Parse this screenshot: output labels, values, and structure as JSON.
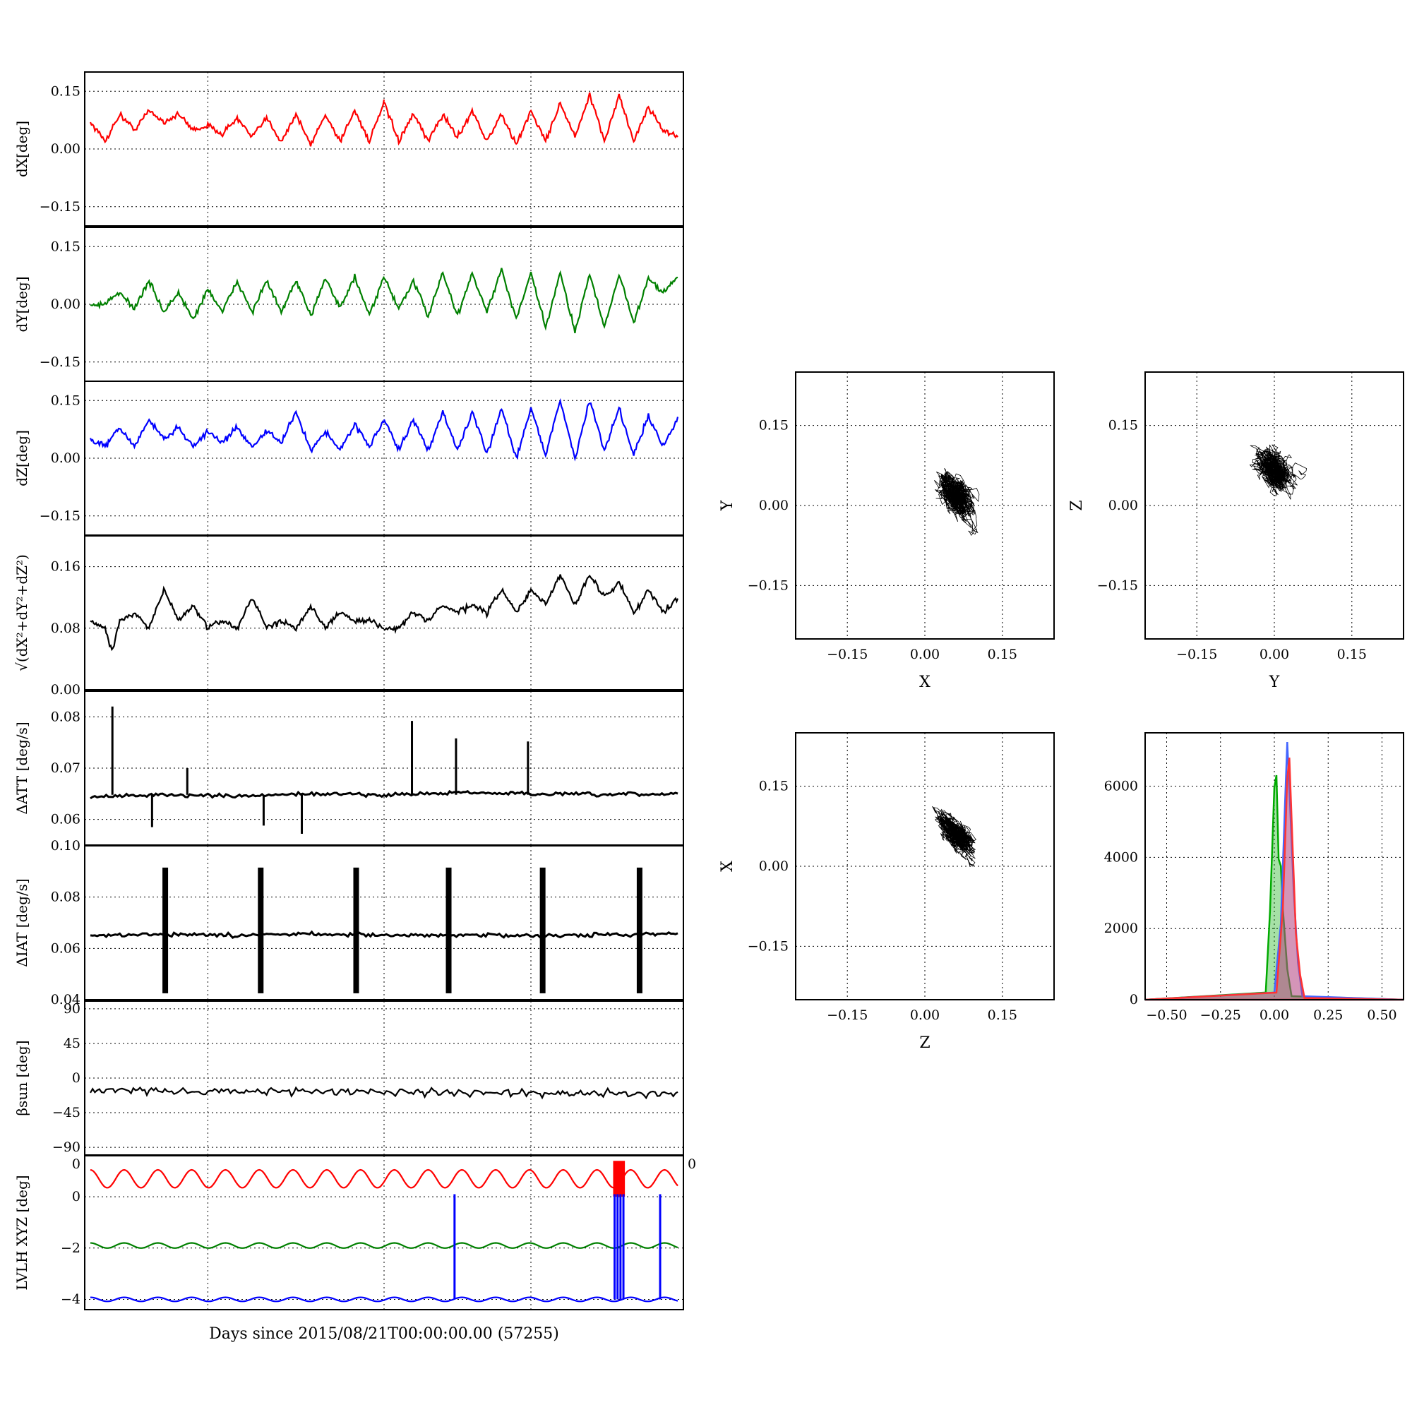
{
  "chart_data": [
    {
      "type": "line",
      "ylabel": "dX[deg]",
      "ylim": [
        -0.2,
        0.2
      ],
      "yticks": [
        "0.15",
        "0.00",
        "−0.15"
      ],
      "yticks_values": [
        0.15,
        0.0,
        -0.15
      ],
      "series": [
        {
          "color": "#ff0000",
          "x": [
            0,
            1,
            2,
            3,
            4,
            5,
            6,
            7,
            8,
            9,
            10,
            11,
            12,
            13,
            14,
            15,
            16,
            17,
            18,
            19,
            20
          ],
          "y": [
            0.07,
            0.02,
            0.09,
            0.05,
            0.1,
            0.07,
            0.09,
            0.05,
            0.06,
            0.04,
            0.08,
            0.03,
            0.08,
            0.02,
            0.09,
            0.01,
            0.09,
            0.02,
            0.1,
            0.02,
            0.12
          ]
        },
        {
          "color": "#ff0000",
          "x": [
            20,
            21,
            22,
            23,
            24,
            25,
            26,
            27,
            28,
            29,
            30,
            31,
            32,
            33,
            34,
            35,
            36,
            37,
            38,
            39,
            40
          ],
          "y": [
            0.12,
            0.02,
            0.09,
            0.02,
            0.09,
            0.03,
            0.1,
            0.02,
            0.09,
            0.01,
            0.1,
            0.02,
            0.12,
            0.03,
            0.14,
            0.02,
            0.14,
            0.02,
            0.11,
            0.05,
            0.03
          ]
        }
      ]
    },
    {
      "type": "line",
      "ylabel": "dY[deg]",
      "ylim": [
        -0.2,
        0.2
      ],
      "yticks": [
        "0.15",
        "0.00",
        "−0.15"
      ],
      "yticks_values": [
        0.15,
        0.0,
        -0.15
      ],
      "series": [
        {
          "color": "#008000",
          "x": [
            0,
            1,
            2,
            3,
            4,
            5,
            6,
            7,
            8,
            9,
            10,
            11,
            12,
            13,
            14,
            15,
            16,
            17,
            18,
            19,
            20
          ],
          "y": [
            0.0,
            0.0,
            0.03,
            -0.01,
            0.06,
            -0.02,
            0.03,
            -0.04,
            0.04,
            -0.02,
            0.06,
            -0.02,
            0.06,
            -0.02,
            0.06,
            -0.03,
            0.07,
            -0.01,
            0.07,
            -0.03,
            0.07
          ]
        },
        {
          "color": "#008000",
          "x": [
            20,
            21,
            22,
            23,
            24,
            25,
            26,
            27,
            28,
            29,
            30,
            31,
            32,
            33,
            34,
            35,
            36,
            37,
            38,
            39,
            40
          ],
          "y": [
            0.07,
            -0.01,
            0.06,
            -0.03,
            0.08,
            -0.03,
            0.08,
            -0.02,
            0.09,
            -0.04,
            0.08,
            -0.06,
            0.08,
            -0.07,
            0.08,
            -0.06,
            0.08,
            -0.05,
            0.07,
            0.03,
            0.07
          ]
        }
      ]
    },
    {
      "type": "line",
      "ylabel": "dZ[deg]",
      "ylim": [
        -0.2,
        0.2
      ],
      "yticks": [
        "0.15",
        "0.00",
        "−0.15"
      ],
      "yticks_values": [
        0.15,
        0.0,
        -0.15
      ],
      "series": [
        {
          "color": "#0000ff",
          "x": [
            0,
            1,
            2,
            3,
            4,
            5,
            6,
            7,
            8,
            9,
            10,
            11,
            12,
            13,
            14,
            15,
            16,
            17,
            18,
            19,
            20
          ],
          "y": [
            0.05,
            0.03,
            0.08,
            0.03,
            0.1,
            0.05,
            0.08,
            0.03,
            0.07,
            0.04,
            0.08,
            0.03,
            0.07,
            0.04,
            0.12,
            0.02,
            0.07,
            0.02,
            0.09,
            0.03,
            0.1
          ]
        },
        {
          "color": "#0000ff",
          "x": [
            20,
            21,
            22,
            23,
            24,
            25,
            26,
            27,
            28,
            29,
            30,
            31,
            32,
            33,
            34,
            35,
            36,
            37,
            38,
            39,
            40
          ],
          "y": [
            0.1,
            0.02,
            0.1,
            0.02,
            0.12,
            0.02,
            0.12,
            0.01,
            0.13,
            0.0,
            0.13,
            0.01,
            0.15,
            0.0,
            0.15,
            0.02,
            0.13,
            0.01,
            0.11,
            0.03,
            0.1
          ]
        }
      ]
    },
    {
      "type": "line",
      "ylabel": "√(dX²+dY²+dZ²)",
      "ylim": [
        0.0,
        0.2
      ],
      "yticks": [
        "0.16",
        "0.08",
        "0.00"
      ],
      "yticks_values": [
        0.16,
        0.08,
        0.0
      ],
      "series": [
        {
          "color": "#000000",
          "x": [
            0,
            1,
            1.5,
            2,
            3,
            4,
            5,
            6,
            7,
            8,
            9,
            10,
            11,
            12,
            13,
            14,
            15,
            16,
            17,
            18,
            19,
            20
          ],
          "y": [
            0.09,
            0.08,
            0.05,
            0.09,
            0.1,
            0.08,
            0.13,
            0.09,
            0.11,
            0.08,
            0.09,
            0.08,
            0.12,
            0.08,
            0.09,
            0.08,
            0.11,
            0.08,
            0.1,
            0.09,
            0.09,
            0.08
          ]
        },
        {
          "color": "#000000",
          "x": [
            20,
            21,
            22,
            23,
            24,
            25,
            26,
            27,
            28,
            29,
            30,
            31,
            32,
            33,
            34,
            35,
            36,
            37,
            38,
            39,
            40
          ],
          "y": [
            0.08,
            0.08,
            0.1,
            0.09,
            0.11,
            0.1,
            0.11,
            0.1,
            0.13,
            0.1,
            0.13,
            0.11,
            0.15,
            0.11,
            0.15,
            0.12,
            0.14,
            0.1,
            0.13,
            0.1,
            0.12
          ]
        }
      ]
    },
    {
      "type": "line",
      "ylabel": "ΔATT [deg/s]",
      "ylim": [
        0.055,
        0.085
      ],
      "yticks": [
        "0.08",
        "0.07",
        "0.06"
      ],
      "yticks_values": [
        0.08,
        0.07,
        0.06
      ],
      "series": [
        {
          "color": "#000000",
          "x": [
            0,
            5,
            10,
            15,
            20,
            25,
            30,
            35,
            40
          ],
          "y": [
            0.0645,
            0.0648,
            0.0645,
            0.065,
            0.0648,
            0.0652,
            0.065,
            0.0648,
            0.065
          ]
        }
      ],
      "spikes": [
        {
          "x": 1.5,
          "y": 0.082
        },
        {
          "x": 4.2,
          "y": 0.0585
        },
        {
          "x": 6.6,
          "y": 0.07
        },
        {
          "x": 11.8,
          "y": 0.0588
        },
        {
          "x": 14.4,
          "y": 0.0572
        },
        {
          "x": 21.9,
          "y": 0.0792
        },
        {
          "x": 24.9,
          "y": 0.0758
        },
        {
          "x": 29.8,
          "y": 0.0752
        }
      ]
    },
    {
      "type": "line",
      "ylabel": "ΔIAT [deg/s]",
      "ylim": [
        0.04,
        0.1
      ],
      "yticks": [
        "0.10",
        "0.08",
        "0.06",
        "0.04"
      ],
      "yticks_values": [
        0.1,
        0.08,
        0.06,
        0.04
      ],
      "series": [
        {
          "color": "#000000",
          "x": [
            0,
            5,
            10,
            15,
            20,
            25,
            30,
            35,
            40
          ],
          "y": [
            0.065,
            0.0655,
            0.065,
            0.0658,
            0.065,
            0.0652,
            0.065,
            0.0652,
            0.066
          ]
        }
      ],
      "bursts": [
        {
          "x": 5.1,
          "ymin": 0.0425,
          "ymax": 0.0915
        },
        {
          "x": 11.6,
          "ymin": 0.0425,
          "ymax": 0.0915
        },
        {
          "x": 18.1,
          "ymin": 0.0425,
          "ymax": 0.0915
        },
        {
          "x": 24.4,
          "ymin": 0.0425,
          "ymax": 0.0915
        },
        {
          "x": 30.8,
          "ymin": 0.0425,
          "ymax": 0.0915
        },
        {
          "x": 37.4,
          "ymin": 0.0425,
          "ymax": 0.0915
        }
      ]
    },
    {
      "type": "line",
      "ylabel": "βsun [deg]",
      "ylim": [
        -100,
        100
      ],
      "yticks": [
        "90",
        "45",
        "0",
        "−45",
        "−90"
      ],
      "yticks_values": [
        90,
        45,
        0,
        -45,
        -90
      ],
      "series": [
        {
          "color": "#000000",
          "x": [
            0,
            10,
            20,
            30,
            40
          ],
          "y": [
            -16,
            -17,
            -18,
            -19,
            -21
          ]
        }
      ],
      "oscillation": {
        "period_days": 1.0,
        "amplitude_deg": 2
      }
    },
    {
      "type": "line",
      "ylabel": "LVLH XYZ [deg]",
      "ylim": [
        -4.4,
        1.6
      ],
      "yticks": [
        "0",
        "−2",
        "−4"
      ],
      "yticks_values": [
        0,
        -2,
        -4
      ],
      "corner_labels": [
        "0",
        "0"
      ],
      "series": [
        {
          "color": "#ff0000",
          "center": 0.7,
          "amplitude": 0.35,
          "period_days": 2.3
        },
        {
          "color": "#008000",
          "center": -1.9,
          "amplitude": 0.1,
          "period_days": 2.3
        },
        {
          "color": "#0000ff",
          "center": -4.0,
          "amplitude": 0.08,
          "period_days": 2.3
        }
      ],
      "jumps": [
        {
          "x": 24.8,
          "color": "#0000ff"
        },
        {
          "x": 35.7,
          "color": "#0000ff"
        },
        {
          "x": 35.9,
          "color": "#0000ff"
        },
        {
          "x": 36.1,
          "color": "#0000ff"
        },
        {
          "x": 36.3,
          "color": "#0000ff"
        },
        {
          "x": 38.8,
          "color": "#0000ff"
        }
      ],
      "red_band": {
        "x0": 35.6,
        "x1": 36.4
      }
    },
    {
      "type": "scatter",
      "xlabel": "X",
      "ylabel": "Y",
      "xlim": [
        -0.25,
        0.25
      ],
      "ylim": [
        -0.25,
        0.25
      ],
      "ticks": [
        "−0.15",
        "0.00",
        "0.15"
      ],
      "ticks_values": [
        -0.15,
        0.0,
        0.15
      ],
      "cloud": {
        "center_x": 0.06,
        "center_y": 0.02,
        "spread_x": 0.025,
        "spread_y": 0.03,
        "tilt": -0.6
      }
    },
    {
      "type": "scatter",
      "xlabel": "Y",
      "ylabel": "Z",
      "xlim": [
        -0.25,
        0.25
      ],
      "ylim": [
        -0.25,
        0.25
      ],
      "ticks": [
        "−0.15",
        "0.00",
        "0.15"
      ],
      "ticks_values": [
        -0.15,
        0.0,
        0.15
      ],
      "cloud": {
        "center_x": 0.0,
        "center_y": 0.07,
        "spread_x": 0.03,
        "spread_y": 0.028,
        "tilt": -0.4
      }
    },
    {
      "type": "scatter",
      "xlabel": "Z",
      "ylabel": "X",
      "xlim": [
        -0.25,
        0.25
      ],
      "ylim": [
        -0.25,
        0.25
      ],
      "ticks": [
        "−0.15",
        "0.00",
        "0.15"
      ],
      "ticks_values": [
        -0.15,
        0.0,
        0.15
      ],
      "cloud": {
        "center_x": 0.06,
        "center_y": 0.06,
        "spread_x": 0.028,
        "spread_y": 0.022,
        "tilt": -0.8
      }
    },
    {
      "type": "bar",
      "xlim": [
        -0.6,
        0.6
      ],
      "ylim": [
        0,
        7500
      ],
      "xticks": [
        "−0.50",
        "−0.25",
        "0.00",
        "0.25",
        "0.50"
      ],
      "xticks_values": [
        -0.5,
        -0.25,
        0.0,
        0.25,
        0.5
      ],
      "yticks": [
        "6000",
        "4000",
        "2000",
        "0"
      ],
      "yticks_values": [
        6000,
        4000,
        2000,
        0
      ],
      "series": [
        {
          "color": "#00aa00",
          "x": [
            -0.04,
            -0.02,
            0.0,
            0.01,
            0.02,
            0.03,
            0.04,
            0.06,
            0.08
          ],
          "y": [
            200,
            2500,
            5800,
            6300,
            4000,
            3800,
            2500,
            800,
            100
          ]
        },
        {
          "color": "#4466ff",
          "x": [
            0.0,
            0.03,
            0.05,
            0.06,
            0.07,
            0.09,
            0.11,
            0.13
          ],
          "y": [
            200,
            2000,
            5600,
            7200,
            6000,
            3000,
            1000,
            100
          ]
        },
        {
          "color": "#ff3333",
          "x": [
            0.01,
            0.04,
            0.06,
            0.07,
            0.08,
            0.1,
            0.12,
            0.14
          ],
          "y": [
            200,
            2500,
            6200,
            6800,
            5200,
            1800,
            600,
            50
          ]
        }
      ]
    }
  ],
  "xlabel_bottom": "Days since 2015/08/21T00:00:00.00 (57255)"
}
